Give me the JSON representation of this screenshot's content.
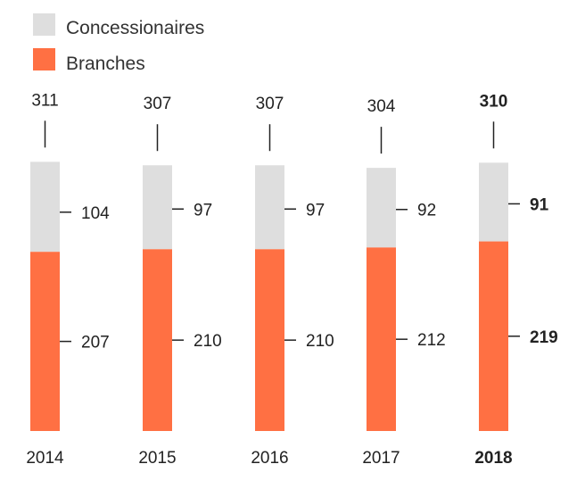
{
  "chart_data": {
    "type": "bar",
    "stacked": true,
    "categories": [
      "2014",
      "2015",
      "2016",
      "2017",
      "2018"
    ],
    "series": [
      {
        "name": "Branches",
        "values": [
          207,
          210,
          210,
          212,
          219
        ],
        "color": "#ff7043"
      },
      {
        "name": "Concessionaires",
        "values": [
          104,
          97,
          97,
          92,
          91
        ],
        "color": "#dedede"
      }
    ],
    "totals": [
      311,
      307,
      307,
      304,
      310
    ],
    "highlight_category": "2018",
    "legend": [
      "Concessionaires",
      "Branches"
    ],
    "legend_position": "top-left"
  }
}
